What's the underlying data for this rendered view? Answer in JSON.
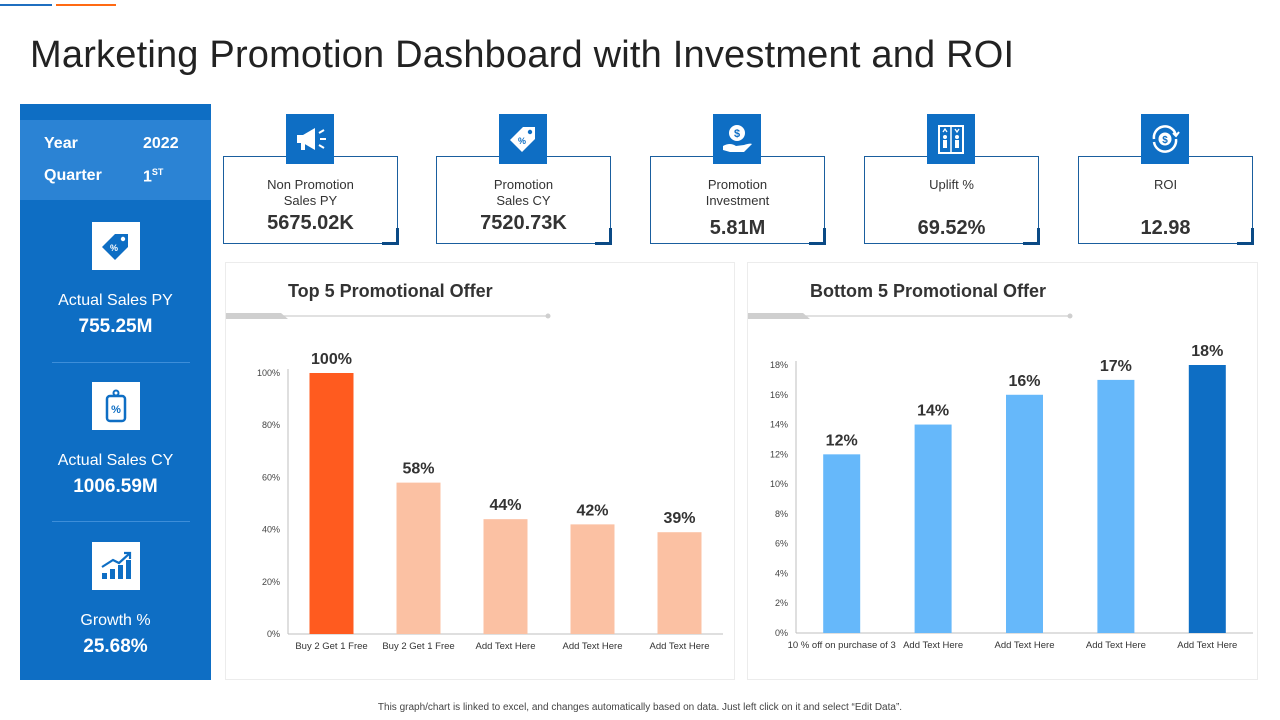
{
  "page": {
    "title": "Marketing Promotion Dashboard with Investment and ROI",
    "footer_note": "This graph/chart is linked to excel, and changes automatically based on data. Just left click on it and select “Edit Data”."
  },
  "sidebar": {
    "year_label": "Year",
    "year_value": "2022",
    "quarter_label": "Quarter",
    "quarter_value": "1",
    "quarter_suffix": "ST",
    "metrics": [
      {
        "label": "Actual Sales PY",
        "value": "755.25M",
        "icon": "price-tag-icon"
      },
      {
        "label": "Actual Sales CY",
        "value": "1006.59M",
        "icon": "discount-tag-icon"
      },
      {
        "label": "Growth %",
        "value": "25.68%",
        "icon": "growth-chart-icon"
      }
    ]
  },
  "kpis": [
    {
      "label_line1": "Non Promotion",
      "label_line2": "Sales PY",
      "value": "5675.02K",
      "icon": "megaphone-icon"
    },
    {
      "label_line1": "Promotion",
      "label_line2": "Sales CY",
      "value": "7520.73K",
      "icon": "discount-tag-icon"
    },
    {
      "label_line1": "Promotion",
      "label_line2": "Investment",
      "value": "5.81M",
      "icon": "money-hand-icon"
    },
    {
      "label_line1": "Uplift %",
      "label_line2": "",
      "value": "69.52%",
      "icon": "people-elevator-icon"
    },
    {
      "label_line1": "ROI",
      "label_line2": "",
      "value": "12.98",
      "icon": "dollar-cycle-icon"
    }
  ],
  "colors": {
    "primary_blue": "#0e6ec4",
    "light_blue_panel": "#2b83d4",
    "orange_bar": "#ff5b1f",
    "peach_bar": "#fbc1a3",
    "light_blue_bar": "#66b8fa",
    "dark_blue_bar": "#0e6ec4"
  },
  "chart_data": [
    {
      "type": "bar",
      "title": "Top 5 Promotional Offer",
      "categories": [
        "Buy 2 Get 1 Free",
        "Buy 2 Get 1 Free",
        "Add Text Here",
        "Add Text Here",
        "Add Text Here"
      ],
      "values": [
        100,
        58,
        44,
        42,
        39
      ],
      "unit": "%",
      "ylim": [
        0,
        100
      ],
      "yticks": [
        0,
        20,
        40,
        60,
        80,
        100
      ],
      "bar_colors": [
        "#ff5b1f",
        "#fbc1a3",
        "#fbc1a3",
        "#fbc1a3",
        "#fbc1a3"
      ],
      "grid": false
    },
    {
      "type": "bar",
      "title": "Bottom 5 Promotional Offer",
      "categories": [
        "10 % off on purchase of 3",
        "Add Text Here",
        "Add Text Here",
        "Add Text Here",
        "Add Text Here"
      ],
      "values": [
        12,
        14,
        16,
        17,
        18
      ],
      "unit": "%",
      "ylim": [
        0,
        18
      ],
      "yticks": [
        0,
        2,
        4,
        6,
        8,
        10,
        12,
        14,
        16,
        18
      ],
      "bar_colors": [
        "#66b8fa",
        "#66b8fa",
        "#66b8fa",
        "#66b8fa",
        "#0e6ec4"
      ],
      "grid": false
    }
  ]
}
